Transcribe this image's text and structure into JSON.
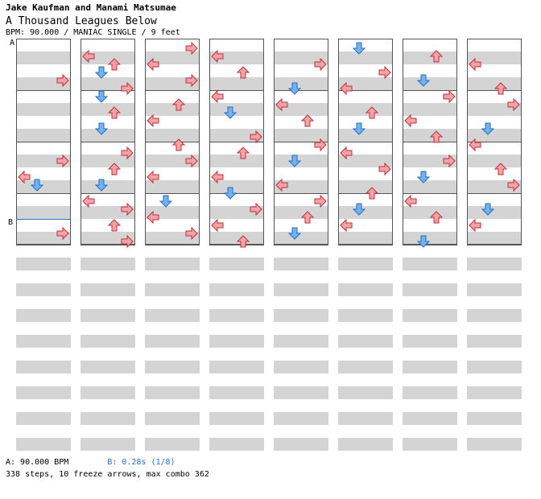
{
  "header": {
    "artist": "Jake Kaufman and Manami Matsumae",
    "title": "A Thousand Leagues Below",
    "info": "BPM: 90.000 / MANIAC SINGLE / 9 feet"
  },
  "markers": {
    "a_label": "A",
    "b_label": "B"
  },
  "footer": {
    "bpm_a": "A: 90.000 BPM",
    "bpm_b": "B: 0.28s (1/8)",
    "stats": "338 steps, 10 freeze arrows, max combo 362"
  },
  "colors": {
    "left_arrow": "#f3a3a8",
    "down_arrow": "#6fb3ef",
    "up_arrow": "#f3a3a8",
    "right_arrow": "#f3a3a8",
    "freeze": "#b6f0b0",
    "stripe": "#d4d4d4",
    "marker_line": "#2a6fcf"
  },
  "chart_data": {
    "type": "table",
    "columns": 8,
    "measures_per_column": 4,
    "notes": [
      [
        0,
        4,
        "R"
      ],
      [
        0,
        14,
        "R"
      ],
      [
        0,
        16,
        "L"
      ],
      [
        0,
        17,
        "D"
      ],
      [
        0,
        23,
        "R"
      ],
      [
        1,
        1,
        "L"
      ],
      [
        1,
        2,
        "U"
      ],
      [
        1,
        3,
        "D"
      ],
      [
        1,
        5,
        "R"
      ],
      [
        1,
        6,
        "D"
      ],
      [
        1,
        8,
        "U"
      ],
      [
        1,
        10,
        "D"
      ],
      [
        1,
        13,
        "R"
      ],
      [
        1,
        15,
        "U"
      ],
      [
        1,
        17,
        "D"
      ],
      [
        1,
        19,
        "L"
      ],
      [
        1,
        20,
        "R"
      ],
      [
        1,
        22,
        "U"
      ],
      [
        1,
        24,
        "R"
      ],
      [
        2,
        0,
        "R"
      ],
      [
        2,
        2,
        "L"
      ],
      [
        2,
        4,
        "R"
      ],
      [
        2,
        7,
        "U"
      ],
      [
        2,
        9,
        "L"
      ],
      [
        2,
        12,
        "U"
      ],
      [
        2,
        14,
        "R"
      ],
      [
        2,
        16,
        "L"
      ],
      [
        2,
        19,
        "D"
      ],
      [
        2,
        21,
        "L"
      ],
      [
        2,
        23,
        "R"
      ],
      [
        3,
        1,
        "L"
      ],
      [
        3,
        3,
        "U"
      ],
      [
        3,
        6,
        "L"
      ],
      [
        3,
        8,
        "D"
      ],
      [
        3,
        11,
        "R"
      ],
      [
        3,
        13,
        "U"
      ],
      [
        3,
        16,
        "L"
      ],
      [
        3,
        18,
        "D"
      ],
      [
        3,
        20,
        "R"
      ],
      [
        3,
        22,
        "L"
      ],
      [
        3,
        24,
        "U"
      ],
      [
        4,
        2,
        "R"
      ],
      [
        4,
        5,
        "D"
      ],
      [
        4,
        7,
        "L"
      ],
      [
        4,
        9,
        "U"
      ],
      [
        4,
        12,
        "R"
      ],
      [
        4,
        14,
        "D"
      ],
      [
        4,
        17,
        "L"
      ],
      [
        4,
        19,
        "R"
      ],
      [
        4,
        21,
        "U"
      ],
      [
        4,
        23,
        "D"
      ],
      [
        5,
        0,
        "D"
      ],
      [
        5,
        3,
        "R"
      ],
      [
        5,
        5,
        "L"
      ],
      [
        5,
        8,
        "U"
      ],
      [
        5,
        10,
        "D"
      ],
      [
        5,
        13,
        "L"
      ],
      [
        5,
        15,
        "R"
      ],
      [
        5,
        18,
        "U"
      ],
      [
        5,
        20,
        "D"
      ],
      [
        5,
        22,
        "L"
      ],
      [
        6,
        1,
        "U"
      ],
      [
        6,
        4,
        "D"
      ],
      [
        6,
        6,
        "R"
      ],
      [
        6,
        9,
        "L"
      ],
      [
        6,
        11,
        "U"
      ],
      [
        6,
        14,
        "R"
      ],
      [
        6,
        16,
        "D"
      ],
      [
        6,
        19,
        "L"
      ],
      [
        6,
        21,
        "U"
      ],
      [
        6,
        24,
        "D"
      ],
      [
        7,
        2,
        "L"
      ],
      [
        7,
        5,
        "U"
      ],
      [
        7,
        7,
        "R"
      ],
      [
        7,
        10,
        "D"
      ],
      [
        7,
        12,
        "L"
      ],
      [
        7,
        15,
        "U"
      ],
      [
        7,
        17,
        "R"
      ],
      [
        7,
        20,
        "D"
      ],
      [
        7,
        22,
        "L"
      ]
    ]
  }
}
